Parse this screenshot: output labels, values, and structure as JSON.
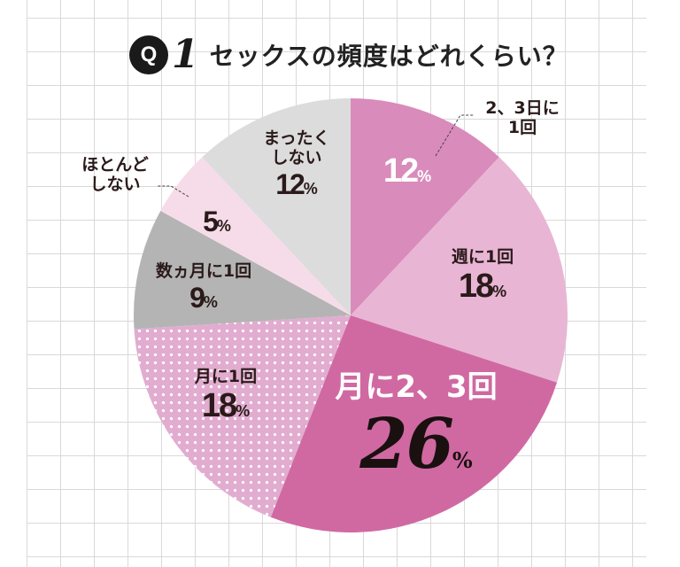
{
  "title": {
    "badge": "Q",
    "number": "1",
    "text": "セックスの頻度はどれくらい？"
  },
  "chart_data": {
    "type": "pie",
    "title": "セックスの頻度はどれくらい？",
    "start": "12 o'clock, clockwise",
    "unit": "%",
    "slices": [
      {
        "label": "2、3日に1回",
        "value": 12,
        "color": "#d98bbb",
        "pattern": "solid",
        "label_color": "#ffffff"
      },
      {
        "label": "週に1回",
        "value": 18,
        "color": "#e8b6d4",
        "pattern": "solid"
      },
      {
        "label": "月に2、3回",
        "value": 26,
        "color": "#d069a2",
        "pattern": "solid",
        "label_color": "#ffffff"
      },
      {
        "label": "月に1回",
        "value": 18,
        "color": "#e2acd0",
        "pattern": "white-dots"
      },
      {
        "label": "数ヵ月に1回",
        "value": 9,
        "color": "#b4b4b4",
        "pattern": "solid"
      },
      {
        "label": "ほとんどしない",
        "value": 5,
        "color": "#f6dce9",
        "pattern": "solid"
      },
      {
        "label": "まったくしない",
        "value": 12,
        "color": "#dcdcdc",
        "pattern": "solid"
      }
    ],
    "display": {
      "s0": {
        "name1": "2、3日に",
        "name2": "1回",
        "pct": "12"
      },
      "s1": {
        "name": "週に1回",
        "pct": "18"
      },
      "s2": {
        "name": "月に2、3回",
        "pct": "26"
      },
      "s3": {
        "name": "月に1回",
        "pct": "18"
      },
      "s4": {
        "name": "数ヵ月に1回",
        "pct": "9"
      },
      "s5": {
        "name1": "ほとんど",
        "name2": "しない",
        "pct": "5"
      },
      "s6": {
        "name1": "まったく",
        "name2": "しない",
        "pct": "12"
      },
      "pct_sign": "%"
    }
  }
}
